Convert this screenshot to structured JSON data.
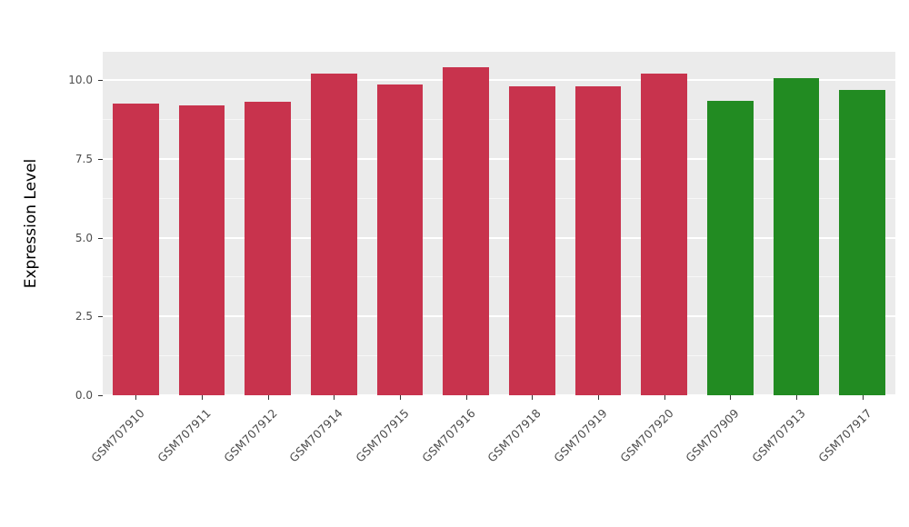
{
  "chart_data": {
    "type": "bar",
    "title": "",
    "xlabel": "",
    "ylabel": "Expression Level",
    "ylim": [
      0,
      10.9
    ],
    "yticks": [
      0.0,
      2.5,
      5.0,
      7.5,
      10.0
    ],
    "ytick_labels": [
      "0.0",
      "2.5",
      "5.0",
      "7.5",
      "10.0"
    ],
    "grid": "on",
    "legend": "none",
    "panel_background": "#EBEBEB",
    "grid_color": "#FFFFFF",
    "categories": [
      "GSM707910",
      "GSM707911",
      "GSM707912",
      "GSM707914",
      "GSM707915",
      "GSM707916",
      "GSM707918",
      "GSM707919",
      "GSM707920",
      "GSM707909",
      "GSM707913",
      "GSM707917"
    ],
    "values": [
      9.25,
      9.2,
      9.3,
      10.2,
      9.85,
      10.4,
      9.8,
      9.8,
      10.2,
      9.35,
      10.05,
      9.7
    ],
    "groups": [
      "red",
      "red",
      "red",
      "red",
      "red",
      "red",
      "red",
      "red",
      "red",
      "green",
      "green",
      "green"
    ],
    "group_colors": {
      "red": "#C8334D",
      "green": "#228B22"
    }
  }
}
